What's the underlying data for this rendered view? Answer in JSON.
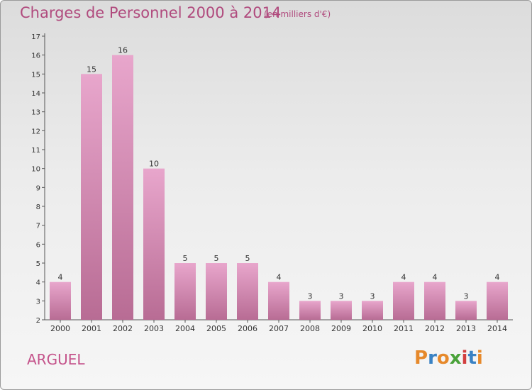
{
  "title": "Charges de Personnel 2000 à 2014",
  "subtitle": "(en milliers d'€)",
  "location": "ARGUEL",
  "logo": {
    "letters": [
      {
        "char": "P",
        "color": "#e6892b"
      },
      {
        "char": "r",
        "color": "#3a82c4"
      },
      {
        "char": "o",
        "color": "#e6892b"
      },
      {
        "char": "x",
        "color": "#4aa23a"
      },
      {
        "char": "i",
        "color": "#d23f3f"
      },
      {
        "char": "t",
        "color": "#3a82c4"
      },
      {
        "char": "i",
        "color": "#e6892b"
      }
    ]
  },
  "colors": {
    "bar_top": "#e8a6cc",
    "bar_bottom": "#b86c94",
    "accent_text": "#b04a7d"
  },
  "chart_data": {
    "type": "bar",
    "categories": [
      "2000",
      "2001",
      "2002",
      "2003",
      "2004",
      "2005",
      "2006",
      "2007",
      "2008",
      "2009",
      "2010",
      "2011",
      "2012",
      "2013",
      "2014"
    ],
    "values": [
      4,
      15,
      16,
      10,
      5,
      5,
      5,
      4,
      3,
      3,
      3,
      4,
      4,
      3,
      4
    ],
    "ylim": [
      2,
      17
    ],
    "yticks": [
      2,
      3,
      4,
      5,
      6,
      7,
      8,
      9,
      10,
      11,
      12,
      13,
      14,
      15,
      16,
      17
    ],
    "grid": false,
    "data_labels": true
  }
}
